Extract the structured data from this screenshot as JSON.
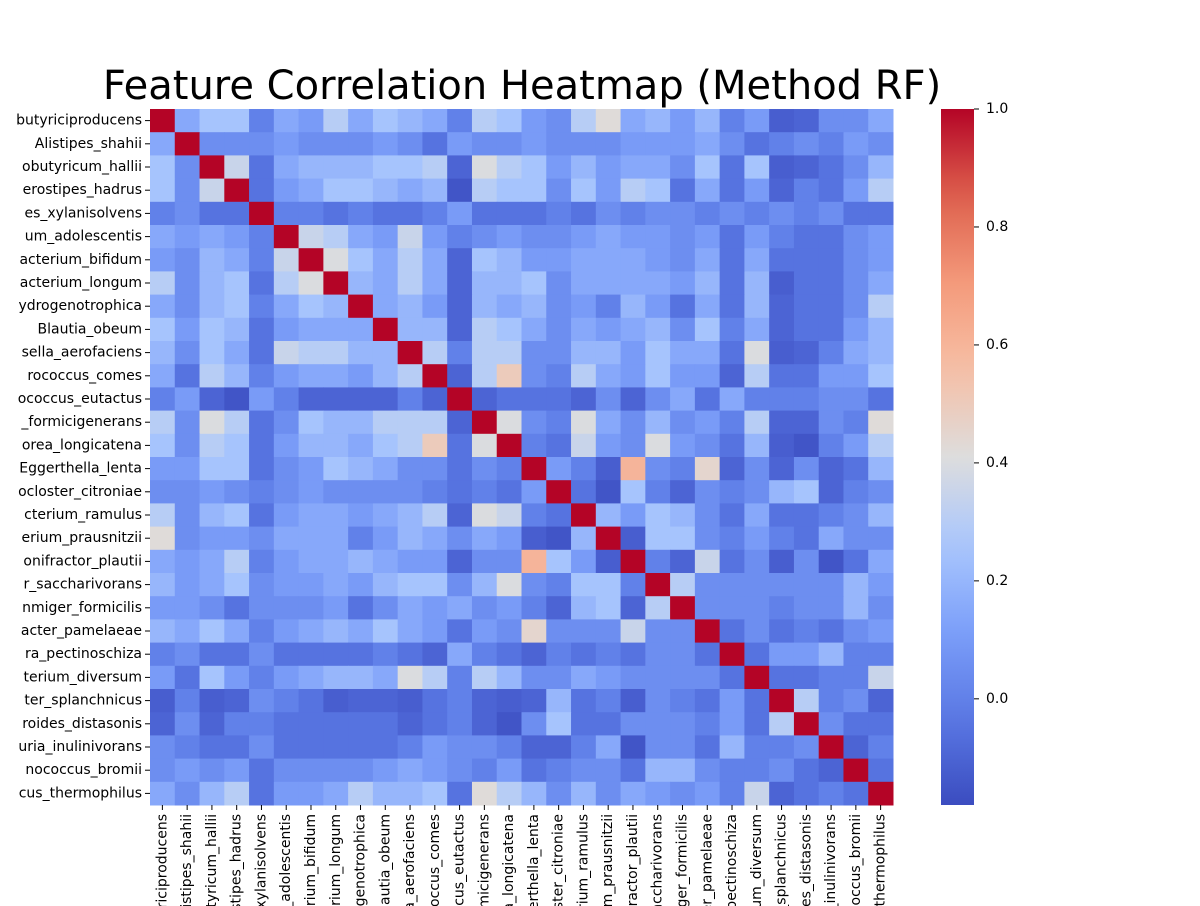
{
  "chart_data": {
    "type": "heatmap",
    "title": "Feature Correlation Heatmap (Method RF)",
    "colormap": "coolwarm",
    "categories": [
      "butyriciproducens",
      "Alistipes_shahii",
      "obutyricum_hallii",
      "erostipes_hadrus",
      "es_xylanisolvens",
      "um_adolescentis",
      "acterium_bifidum",
      "acterium_longum",
      "ydrogenotrophica",
      "Blautia_obeum",
      "sella_aerofaciens",
      "rococcus_comes",
      "ococcus_eutactus",
      "_formicigenerans",
      "orea_longicatena",
      "Eggerthella_lenta",
      "ocloster_citroniae",
      "cterium_ramulus",
      "erium_prausnitzii",
      "onifractor_plautii",
      "r_saccharivorans",
      "nmiger_formicilis",
      "acter_pamelaeae",
      "ra_pectinoschiza",
      "terium_diversum",
      "ter_splanchnicus",
      "roides_distasonis",
      "uria_inulinivorans",
      "nococcus_bromii",
      "cus_thermophilus"
    ],
    "values": [
      [
        1,
        0.15,
        0.25,
        0.25,
        0.0,
        0.15,
        0.1,
        0.3,
        0.15,
        0.25,
        0.2,
        0.15,
        0.0,
        0.3,
        0.25,
        0.1,
        0.05,
        0.3,
        0.42,
        0.15,
        0.2,
        0.1,
        0.2,
        0.0,
        0.1,
        -0.12,
        -0.1,
        0.05,
        0.05,
        0.15
      ],
      [
        0.15,
        1,
        0.05,
        0.05,
        0.05,
        0.1,
        0.05,
        0.05,
        0.05,
        0.1,
        0.05,
        -0.05,
        0.1,
        0.05,
        0.05,
        0.1,
        0.05,
        0.05,
        0.05,
        0.1,
        0.1,
        0.1,
        0.15,
        0.05,
        -0.05,
        0.0,
        0.05,
        0.0,
        0.1,
        0.05
      ],
      [
        0.25,
        0.05,
        1,
        0.35,
        -0.05,
        0.15,
        0.2,
        0.2,
        0.2,
        0.25,
        0.25,
        0.3,
        -0.1,
        0.4,
        0.3,
        0.25,
        0.1,
        0.2,
        0.1,
        0.15,
        0.15,
        0.05,
        0.25,
        -0.05,
        0.25,
        -0.12,
        -0.1,
        -0.05,
        0.05,
        0.2
      ],
      [
        0.25,
        0.05,
        0.35,
        1,
        -0.05,
        0.1,
        0.15,
        0.25,
        0.25,
        0.2,
        0.15,
        0.2,
        -0.15,
        0.3,
        0.25,
        0.25,
        0.05,
        0.25,
        0.1,
        0.3,
        0.25,
        -0.05,
        0.15,
        -0.05,
        0.1,
        -0.1,
        0.0,
        -0.05,
        0.1,
        0.3
      ],
      [
        0.0,
        0.05,
        -0.05,
        -0.05,
        1,
        0.0,
        0.0,
        -0.05,
        0.0,
        -0.05,
        -0.05,
        0.0,
        0.1,
        -0.05,
        -0.05,
        -0.05,
        0.0,
        -0.05,
        0.05,
        0.0,
        0.05,
        0.05,
        0.0,
        0.05,
        0.0,
        0.05,
        0.0,
        0.05,
        -0.05,
        -0.05
      ],
      [
        0.15,
        0.1,
        0.15,
        0.1,
        0.0,
        1,
        0.35,
        0.3,
        0.15,
        0.1,
        0.35,
        0.1,
        0.0,
        0.05,
        0.1,
        0.05,
        0.05,
        0.1,
        0.15,
        0.1,
        0.1,
        0.05,
        0.1,
        -0.05,
        0.1,
        0.0,
        -0.05,
        -0.05,
        0.05,
        0.1
      ],
      [
        0.1,
        0.05,
        0.2,
        0.15,
        0.0,
        0.35,
        1,
        0.4,
        0.25,
        0.15,
        0.3,
        0.15,
        -0.1,
        0.25,
        0.2,
        0.1,
        0.1,
        0.15,
        0.15,
        0.15,
        0.1,
        0.05,
        0.15,
        -0.05,
        0.15,
        -0.05,
        -0.05,
        -0.05,
        0.05,
        0.1
      ],
      [
        0.3,
        0.05,
        0.2,
        0.25,
        -0.05,
        0.3,
        0.4,
        1,
        0.2,
        0.15,
        0.3,
        0.15,
        -0.1,
        0.2,
        0.2,
        0.25,
        0.05,
        0.15,
        0.15,
        0.15,
        0.15,
        0.1,
        0.2,
        -0.05,
        0.2,
        -0.12,
        -0.05,
        -0.05,
        0.05,
        0.15
      ],
      [
        0.15,
        0.05,
        0.2,
        0.25,
        0.0,
        0.15,
        0.25,
        0.2,
        1,
        0.15,
        0.2,
        0.1,
        -0.1,
        0.2,
        0.15,
        0.2,
        0.05,
        0.1,
        0.0,
        0.2,
        0.1,
        -0.05,
        0.15,
        -0.05,
        0.2,
        -0.1,
        -0.05,
        -0.05,
        0.05,
        0.3
      ],
      [
        0.25,
        0.1,
        0.25,
        0.2,
        -0.05,
        0.1,
        0.15,
        0.15,
        0.15,
        1,
        0.2,
        0.2,
        -0.1,
        0.3,
        0.25,
        0.15,
        0.05,
        0.15,
        0.1,
        0.15,
        0.2,
        0.05,
        0.25,
        0.0,
        0.15,
        -0.1,
        -0.05,
        -0.05,
        0.1,
        0.2
      ],
      [
        0.2,
        0.05,
        0.25,
        0.15,
        -0.05,
        0.35,
        0.3,
        0.3,
        0.2,
        0.2,
        1,
        0.3,
        0.0,
        0.3,
        0.3,
        0.05,
        0.05,
        0.2,
        0.2,
        0.1,
        0.25,
        0.15,
        0.15,
        -0.05,
        0.4,
        -0.12,
        -0.1,
        0.0,
        0.15,
        0.2
      ],
      [
        0.15,
        -0.05,
        0.3,
        0.2,
        0.0,
        0.1,
        0.15,
        0.15,
        0.1,
        0.2,
        0.3,
        1,
        -0.1,
        0.3,
        0.5,
        0.05,
        0.0,
        0.3,
        0.15,
        0.1,
        0.25,
        0.1,
        0.1,
        -0.1,
        0.3,
        -0.05,
        -0.05,
        0.1,
        0.1,
        0.25
      ],
      [
        0.0,
        0.1,
        -0.1,
        -0.15,
        0.1,
        0.0,
        -0.1,
        -0.1,
        -0.1,
        -0.1,
        0.0,
        -0.1,
        1,
        -0.1,
        -0.05,
        -0.05,
        -0.05,
        -0.1,
        0.05,
        -0.1,
        0.05,
        0.15,
        -0.05,
        0.15,
        0.0,
        0.0,
        0.0,
        0.05,
        0.05,
        -0.05
      ],
      [
        0.3,
        0.05,
        0.4,
        0.3,
        -0.05,
        0.05,
        0.25,
        0.2,
        0.2,
        0.3,
        0.3,
        0.3,
        -0.1,
        1,
        0.4,
        0.05,
        0.0,
        0.4,
        0.15,
        0.05,
        0.2,
        0.05,
        0.1,
        0.0,
        0.3,
        -0.1,
        -0.1,
        0.05,
        0.0,
        0.42
      ],
      [
        0.25,
        0.05,
        0.3,
        0.25,
        -0.05,
        0.1,
        0.2,
        0.2,
        0.15,
        0.25,
        0.3,
        0.5,
        -0.05,
        0.4,
        1,
        0.0,
        -0.05,
        0.35,
        0.1,
        0.05,
        0.4,
        0.1,
        0.05,
        -0.05,
        0.2,
        -0.12,
        -0.15,
        0.0,
        0.1,
        0.3
      ],
      [
        0.1,
        0.1,
        0.25,
        0.25,
        -0.05,
        0.05,
        0.1,
        0.25,
        0.2,
        0.15,
        0.05,
        0.05,
        -0.05,
        0.05,
        0.0,
        1,
        0.1,
        0.0,
        -0.12,
        0.6,
        0.05,
        0.0,
        0.45,
        -0.1,
        0.05,
        -0.1,
        0.05,
        -0.1,
        -0.05,
        0.2
      ],
      [
        0.05,
        0.05,
        0.1,
        0.05,
        0.0,
        0.05,
        0.1,
        0.05,
        0.05,
        0.05,
        0.05,
        0.0,
        -0.05,
        0.0,
        -0.05,
        0.1,
        1,
        -0.05,
        -0.15,
        0.25,
        0.0,
        -0.1,
        0.05,
        0.0,
        0.05,
        0.2,
        0.25,
        -0.1,
        0.0,
        0.05
      ],
      [
        0.3,
        0.05,
        0.2,
        0.25,
        -0.05,
        0.1,
        0.15,
        0.15,
        0.1,
        0.15,
        0.2,
        0.3,
        -0.1,
        0.4,
        0.35,
        0.0,
        -0.05,
        1,
        0.2,
        0.1,
        0.25,
        0.2,
        0.05,
        -0.05,
        0.15,
        -0.05,
        -0.05,
        0.0,
        0.05,
        0.2
      ],
      [
        0.42,
        0.05,
        0.1,
        0.1,
        0.05,
        0.15,
        0.15,
        0.15,
        0.0,
        0.1,
        0.2,
        0.15,
        0.05,
        0.15,
        0.1,
        -0.12,
        -0.15,
        0.2,
        1,
        -0.12,
        0.25,
        0.25,
        0.05,
        0.0,
        0.1,
        0.0,
        -0.05,
        0.15,
        0.05,
        0.05
      ],
      [
        0.15,
        0.1,
        0.15,
        0.3,
        0.0,
        0.1,
        0.15,
        0.15,
        0.2,
        0.15,
        0.1,
        0.1,
        -0.1,
        0.05,
        0.05,
        0.6,
        0.25,
        0.1,
        -0.12,
        1,
        0.0,
        -0.1,
        0.35,
        -0.05,
        0.05,
        -0.12,
        0.05,
        -0.15,
        -0.05,
        0.15
      ],
      [
        0.2,
        0.1,
        0.15,
        0.25,
        0.05,
        0.1,
        0.1,
        0.15,
        0.1,
        0.2,
        0.25,
        0.25,
        0.05,
        0.2,
        0.4,
        0.05,
        0.0,
        0.25,
        0.25,
        0.0,
        1,
        0.3,
        0.05,
        0.05,
        0.05,
        0.05,
        0.05,
        0.05,
        0.2,
        0.1
      ],
      [
        0.1,
        0.1,
        0.05,
        -0.05,
        0.05,
        0.05,
        0.05,
        0.1,
        -0.05,
        0.05,
        0.15,
        0.1,
        0.15,
        0.05,
        0.1,
        0.0,
        -0.1,
        0.2,
        0.25,
        -0.1,
        0.3,
        1,
        0.05,
        0.05,
        0.05,
        0.0,
        0.05,
        0.05,
        0.2,
        0.05
      ],
      [
        0.2,
        0.15,
        0.25,
        0.15,
        0.0,
        0.1,
        0.15,
        0.2,
        0.15,
        0.25,
        0.15,
        0.1,
        -0.05,
        0.1,
        0.05,
        0.45,
        0.05,
        0.05,
        0.05,
        0.35,
        0.05,
        0.05,
        1,
        -0.05,
        0.05,
        -0.05,
        0.0,
        -0.05,
        0.05,
        0.1
      ],
      [
        0.0,
        0.05,
        -0.05,
        -0.05,
        0.05,
        -0.05,
        -0.05,
        -0.05,
        -0.05,
        0.0,
        -0.05,
        -0.1,
        0.15,
        0.0,
        -0.05,
        -0.1,
        0.0,
        -0.05,
        0.0,
        -0.05,
        0.05,
        0.05,
        -0.05,
        1,
        -0.05,
        0.1,
        0.1,
        0.2,
        0.0,
        0.0
      ],
      [
        0.1,
        -0.05,
        0.25,
        0.1,
        0.0,
        0.1,
        0.15,
        0.2,
        0.2,
        0.15,
        0.4,
        0.3,
        0.0,
        0.3,
        0.2,
        0.05,
        0.05,
        0.15,
        0.1,
        0.05,
        0.05,
        0.05,
        0.05,
        -0.05,
        1,
        -0.05,
        -0.05,
        0.0,
        0.0,
        0.35
      ],
      [
        -0.12,
        0.0,
        -0.12,
        -0.1,
        0.05,
        0.0,
        -0.05,
        -0.12,
        -0.1,
        -0.1,
        -0.12,
        -0.05,
        0.0,
        -0.1,
        -0.12,
        -0.1,
        0.2,
        -0.05,
        0.0,
        -0.12,
        0.05,
        0.0,
        -0.05,
        0.1,
        -0.05,
        1,
        0.3,
        0.0,
        0.05,
        -0.1
      ],
      [
        -0.1,
        0.05,
        -0.1,
        0.0,
        0.0,
        -0.05,
        -0.05,
        -0.05,
        -0.05,
        -0.05,
        -0.1,
        -0.05,
        0.0,
        -0.1,
        -0.15,
        0.05,
        0.25,
        -0.05,
        -0.05,
        0.05,
        0.05,
        0.05,
        0.0,
        0.1,
        -0.05,
        0.3,
        1,
        0.05,
        -0.05,
        -0.05
      ],
      [
        0.05,
        0.0,
        -0.05,
        -0.05,
        0.05,
        -0.05,
        -0.05,
        -0.05,
        -0.05,
        -0.05,
        0.0,
        0.1,
        0.05,
        0.05,
        0.0,
        -0.1,
        -0.1,
        0.0,
        0.15,
        -0.15,
        0.05,
        0.05,
        -0.05,
        0.2,
        0.0,
        0.0,
        0.05,
        1,
        -0.1,
        0.0
      ],
      [
        0.05,
        0.1,
        0.05,
        0.1,
        -0.05,
        0.05,
        0.05,
        0.05,
        0.05,
        0.1,
        0.15,
        0.1,
        0.05,
        0.0,
        0.1,
        -0.05,
        0.0,
        0.05,
        0.05,
        -0.05,
        0.2,
        0.2,
        0.05,
        0.0,
        0.0,
        0.05,
        -0.05,
        -0.1,
        1,
        -0.05
      ],
      [
        0.15,
        0.05,
        0.2,
        0.3,
        -0.05,
        0.1,
        0.1,
        0.15,
        0.3,
        0.2,
        0.2,
        0.25,
        -0.05,
        0.42,
        0.3,
        0.2,
        0.05,
        0.2,
        0.05,
        0.15,
        0.1,
        0.05,
        0.1,
        0.0,
        0.35,
        -0.1,
        -0.05,
        0.0,
        -0.05,
        1
      ]
    ],
    "zlim": [
      -0.18,
      1.0
    ],
    "zticks": [
      {
        "value": 0,
        "label": "0.0"
      },
      0.2,
      0.4,
      0.6,
      0.8,
      {
        "value": 1,
        "label": "1.0"
      }
    ]
  }
}
